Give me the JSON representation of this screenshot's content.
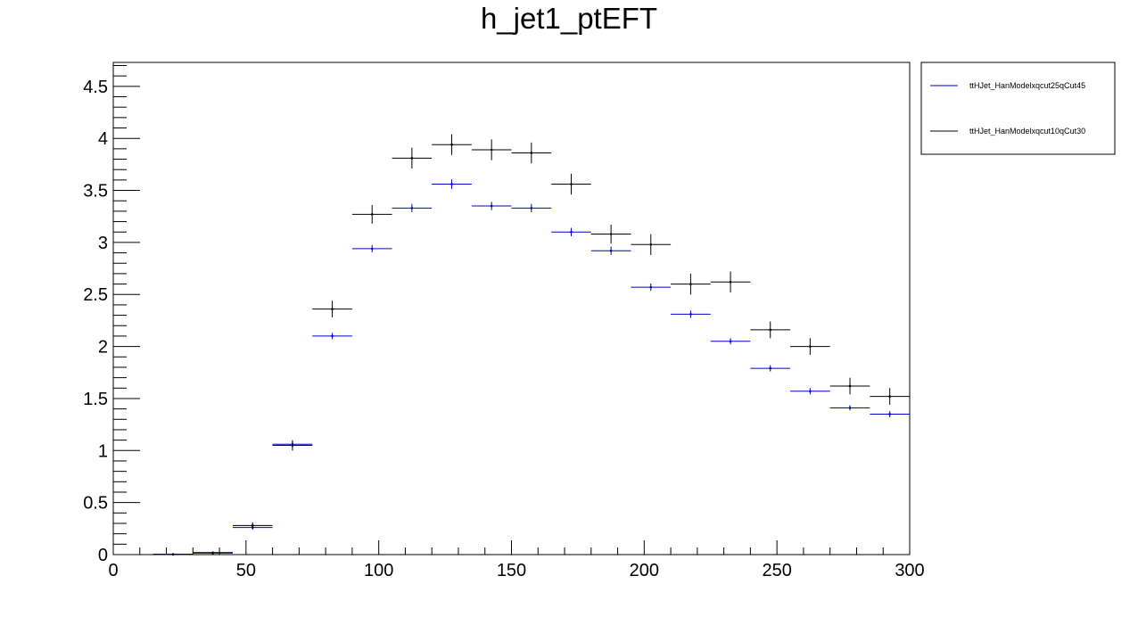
{
  "chart_data": {
    "type": "scatter",
    "title": "h_jet1_ptEFT",
    "xlabel": "",
    "ylabel": "",
    "xlim": [
      0,
      300
    ],
    "ylim": [
      0,
      4.73
    ],
    "x_ticks": [
      0,
      50,
      100,
      150,
      200,
      250,
      300
    ],
    "x_tick_labels": [
      "0",
      "50",
      "100",
      "150",
      "200",
      "250",
      "300"
    ],
    "y_ticks": [
      0,
      0.5,
      1,
      1.5,
      2,
      2.5,
      3,
      3.5,
      4,
      4.5
    ],
    "y_tick_labels": [
      "0",
      "0.5",
      "1",
      "1.5",
      "2",
      "2.5",
      "3",
      "3.5",
      "4",
      "4.5"
    ],
    "bin_width": 15,
    "grid": false,
    "legend_position": "outside-top-right",
    "series": [
      {
        "name": "ttHJet_HanModelxqcut25qCut45",
        "color": "#0000cc",
        "x": [
          22.5,
          37.5,
          52.5,
          67.5,
          82.5,
          97.5,
          112.5,
          127.5,
          142.5,
          157.5,
          172.5,
          187.5,
          202.5,
          217.5,
          232.5,
          247.5,
          262.5,
          277.5,
          292.5
        ],
        "y": [
          0.003,
          0.02,
          0.26,
          1.06,
          2.1,
          2.94,
          3.33,
          3.56,
          3.35,
          3.33,
          3.1,
          2.92,
          2.57,
          2.31,
          2.05,
          1.79,
          1.57,
          1.41,
          1.35
        ],
        "yerr": [
          0.003,
          0.006,
          0.02,
          0.035,
          0.03,
          0.035,
          0.04,
          0.045,
          0.04,
          0.04,
          0.04,
          0.04,
          0.035,
          0.035,
          0.03,
          0.03,
          0.03,
          0.025,
          0.03
        ]
      },
      {
        "name": "ttHJet_HanModelxqcut10qCut30",
        "color": "#000000",
        "x": [
          22.5,
          37.5,
          52.5,
          67.5,
          82.5,
          97.5,
          112.5,
          127.5,
          142.5,
          157.5,
          172.5,
          187.5,
          202.5,
          217.5,
          232.5,
          247.5,
          262.5,
          277.5,
          292.5
        ],
        "y": [
          0.002,
          0.015,
          0.28,
          1.05,
          2.36,
          3.27,
          3.81,
          3.94,
          3.89,
          3.86,
          3.56,
          3.08,
          2.98,
          2.6,
          2.62,
          2.16,
          2.0,
          1.62,
          1.52
        ],
        "yerr": [
          0.002,
          0.008,
          0.03,
          0.05,
          0.08,
          0.09,
          0.1,
          0.1,
          0.1,
          0.1,
          0.1,
          0.09,
          0.1,
          0.1,
          0.1,
          0.08,
          0.08,
          0.08,
          0.08
        ]
      }
    ]
  }
}
